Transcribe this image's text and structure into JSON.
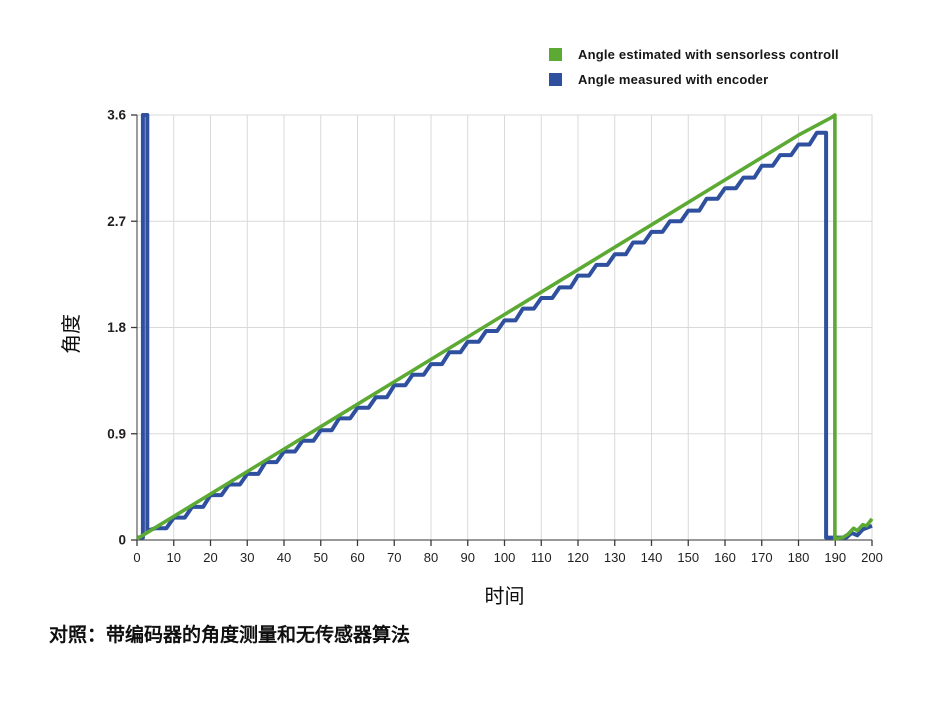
{
  "legend": {
    "items": [
      {
        "label": "Angle estimated with sensorless controll",
        "color": "#5caa34"
      },
      {
        "label": "Angle measured with encoder",
        "color": "#2f4f9f"
      }
    ]
  },
  "caption": "对照：带编码器的角度测量和无传感器算法",
  "chart_data": {
    "type": "line",
    "title": "",
    "xlabel": "时间",
    "ylabel": "角度",
    "xlim": [
      0,
      200
    ],
    "ylim": [
      0,
      3.6
    ],
    "xticks": [
      0,
      10,
      20,
      30,
      40,
      50,
      60,
      70,
      80,
      90,
      100,
      110,
      120,
      130,
      140,
      150,
      160,
      170,
      180,
      190,
      200
    ],
    "yticks": [
      0,
      0.9,
      1.8,
      2.7,
      3.6
    ],
    "grid": true,
    "legend_position": "top-right",
    "colors": {
      "grid": "#d9d9d9",
      "axis": "#5a5a5a",
      "tick": "#3a3a3a",
      "text": "#1f1f1f"
    },
    "series": [
      {
        "name": "Angle measured with encoder",
        "color": "#2f4f9f",
        "width": 4,
        "points": [
          [
            0,
            0.02
          ],
          [
            1.6,
            0.02
          ],
          [
            1.6,
            3.6
          ],
          [
            2.8,
            3.6
          ],
          [
            2.8,
            0.08
          ],
          [
            3,
            0.08
          ],
          [
            5,
            0.1
          ],
          [
            8,
            0.1
          ],
          [
            10,
            0.19
          ],
          [
            13,
            0.19
          ],
          [
            15,
            0.28
          ],
          [
            18,
            0.28
          ],
          [
            20,
            0.38
          ],
          [
            23,
            0.38
          ],
          [
            25,
            0.47
          ],
          [
            28,
            0.47
          ],
          [
            30,
            0.56
          ],
          [
            33,
            0.56
          ],
          [
            35,
            0.66
          ],
          [
            38,
            0.66
          ],
          [
            40,
            0.75
          ],
          [
            43,
            0.75
          ],
          [
            45,
            0.84
          ],
          [
            48,
            0.84
          ],
          [
            50,
            0.93
          ],
          [
            53,
            0.93
          ],
          [
            55,
            1.03
          ],
          [
            58,
            1.03
          ],
          [
            60,
            1.12
          ],
          [
            63,
            1.12
          ],
          [
            65,
            1.21
          ],
          [
            68,
            1.21
          ],
          [
            70,
            1.31
          ],
          [
            73,
            1.31
          ],
          [
            75,
            1.4
          ],
          [
            78,
            1.4
          ],
          [
            80,
            1.49
          ],
          [
            83,
            1.49
          ],
          [
            85,
            1.59
          ],
          [
            88,
            1.59
          ],
          [
            90,
            1.68
          ],
          [
            93,
            1.68
          ],
          [
            95,
            1.77
          ],
          [
            98,
            1.77
          ],
          [
            100,
            1.86
          ],
          [
            103,
            1.86
          ],
          [
            105,
            1.96
          ],
          [
            108,
            1.96
          ],
          [
            110,
            2.05
          ],
          [
            113,
            2.05
          ],
          [
            115,
            2.14
          ],
          [
            118,
            2.14
          ],
          [
            120,
            2.24
          ],
          [
            123,
            2.24
          ],
          [
            125,
            2.33
          ],
          [
            128,
            2.33
          ],
          [
            130,
            2.42
          ],
          [
            133,
            2.42
          ],
          [
            135,
            2.52
          ],
          [
            138,
            2.52
          ],
          [
            140,
            2.61
          ],
          [
            143,
            2.61
          ],
          [
            145,
            2.7
          ],
          [
            148,
            2.7
          ],
          [
            150,
            2.79
          ],
          [
            153,
            2.79
          ],
          [
            155,
            2.89
          ],
          [
            158,
            2.89
          ],
          [
            160,
            2.98
          ],
          [
            163,
            2.98
          ],
          [
            165,
            3.07
          ],
          [
            168,
            3.07
          ],
          [
            170,
            3.17
          ],
          [
            173,
            3.17
          ],
          [
            175,
            3.26
          ],
          [
            178,
            3.26
          ],
          [
            180,
            3.35
          ],
          [
            183,
            3.35
          ],
          [
            185,
            3.45
          ],
          [
            187.5,
            3.45
          ],
          [
            187.5,
            0.02
          ],
          [
            193,
            0.02
          ],
          [
            194.5,
            0.06
          ],
          [
            196,
            0.04
          ],
          [
            197.5,
            0.09
          ],
          [
            200,
            0.12
          ]
        ]
      },
      {
        "name": "Angle estimated with sensorless controll",
        "color": "#5caa34",
        "width": 3.6,
        "points": [
          [
            0,
            0.01
          ],
          [
            20,
            0.39
          ],
          [
            40,
            0.77
          ],
          [
            60,
            1.15
          ],
          [
            80,
            1.53
          ],
          [
            100,
            1.91
          ],
          [
            120,
            2.29
          ],
          [
            140,
            2.67
          ],
          [
            160,
            3.05
          ],
          [
            180,
            3.43
          ],
          [
            189,
            3.58
          ],
          [
            189.9,
            3.6
          ],
          [
            189.9,
            0.01
          ],
          [
            192,
            0.02
          ],
          [
            193.5,
            0.05
          ],
          [
            195,
            0.1
          ],
          [
            196,
            0.08
          ],
          [
            197.5,
            0.13
          ],
          [
            198.5,
            0.12
          ],
          [
            200,
            0.18
          ]
        ]
      }
    ]
  }
}
